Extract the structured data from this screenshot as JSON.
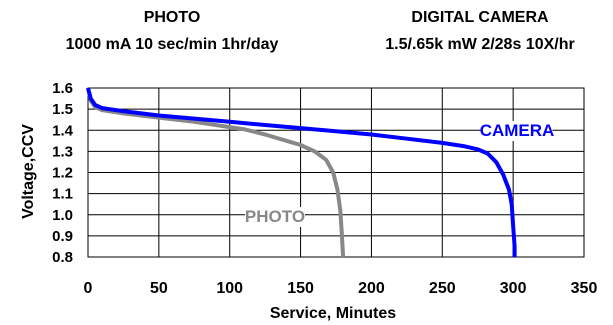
{
  "headers": {
    "left_title": "PHOTO",
    "left_subtitle": "1000 mA 10 sec/min 1hr/day",
    "right_title": "DIGITAL CAMERA",
    "right_subtitle": "1.5/.65k mW 2/28s 10X/hr"
  },
  "chart_data": {
    "type": "line",
    "xlabel": "Service, Minutes",
    "ylabel": "Voltage,CCV",
    "xlim": [
      0,
      350
    ],
    "ylim": [
      0.8,
      1.6
    ],
    "xticks": [
      0,
      50,
      100,
      150,
      200,
      250,
      300,
      350
    ],
    "yticks": [
      "0.8",
      "0.9",
      "1.0",
      "1.1",
      "1.2",
      "1.3",
      "1.4",
      "1.5",
      "1.6"
    ],
    "grid": true,
    "series": [
      {
        "name": "CAMERA",
        "color": "#0000ff",
        "points": [
          [
            0,
            1.6
          ],
          [
            2,
            1.55
          ],
          [
            5,
            1.52
          ],
          [
            10,
            1.505
          ],
          [
            25,
            1.49
          ],
          [
            50,
            1.47
          ],
          [
            75,
            1.455
          ],
          [
            100,
            1.44
          ],
          [
            125,
            1.425
          ],
          [
            150,
            1.41
          ],
          [
            175,
            1.395
          ],
          [
            200,
            1.38
          ],
          [
            225,
            1.36
          ],
          [
            250,
            1.34
          ],
          [
            265,
            1.325
          ],
          [
            275,
            1.31
          ],
          [
            282,
            1.29
          ],
          [
            288,
            1.25
          ],
          [
            293,
            1.19
          ],
          [
            297,
            1.12
          ],
          [
            299,
            1.05
          ],
          [
            300,
            0.95
          ],
          [
            301,
            0.85
          ],
          [
            301,
            0.8
          ]
        ]
      },
      {
        "name": "PHOTO",
        "color": "#888888",
        "points": [
          [
            0,
            1.6
          ],
          [
            2,
            1.54
          ],
          [
            5,
            1.51
          ],
          [
            10,
            1.495
          ],
          [
            25,
            1.48
          ],
          [
            50,
            1.46
          ],
          [
            75,
            1.44
          ],
          [
            100,
            1.415
          ],
          [
            110,
            1.405
          ],
          [
            125,
            1.38
          ],
          [
            140,
            1.35
          ],
          [
            150,
            1.33
          ],
          [
            160,
            1.3
          ],
          [
            168,
            1.26
          ],
          [
            173,
            1.2
          ],
          [
            176,
            1.12
          ],
          [
            178,
            1.02
          ],
          [
            179,
            0.92
          ],
          [
            180,
            0.8
          ]
        ]
      }
    ]
  }
}
